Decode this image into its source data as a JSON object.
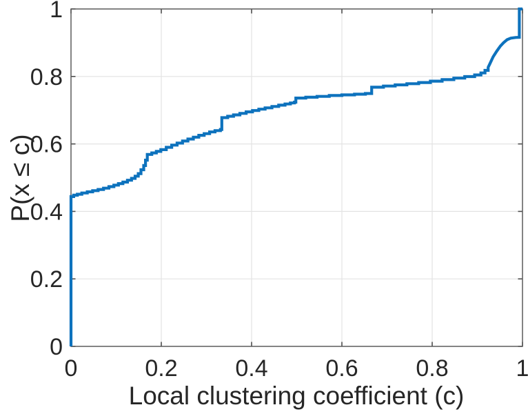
{
  "chart_data": {
    "type": "line",
    "subtype": "empirical-cdf-step",
    "title": "",
    "xlabel": "Local clustering coefficient (c)",
    "ylabel": "P(x ≤ c)",
    "xlim": [
      0,
      1
    ],
    "ylim": [
      0,
      1
    ],
    "x_ticks": [
      0,
      0.2,
      0.4,
      0.6,
      0.8,
      1
    ],
    "x_tick_labels": [
      "0",
      "0.2",
      "0.4",
      "0.6",
      "0.8",
      "1"
    ],
    "y_ticks": [
      0,
      0.2,
      0.4,
      0.6,
      0.8,
      1
    ],
    "y_tick_labels": [
      "0",
      "0.2",
      "0.4",
      "0.6",
      "0.8",
      "1"
    ],
    "grid": true,
    "box": true,
    "legend_position": "none",
    "line_color": "#0d72bd",
    "line_width": 4.2,
    "axis_color": "#5a5a5a",
    "tick_color": "#4d4d4d",
    "grid_color": "#e3e3e3",
    "label_color": "#262626",
    "series": [
      {
        "points": [
          [
            0,
            0
          ],
          [
            0,
            0.444
          ],
          [
            0.006,
            0.444
          ],
          [
            0.006,
            0.448
          ],
          [
            0.014,
            0.448
          ],
          [
            0.014,
            0.451
          ],
          [
            0.024,
            0.451
          ],
          [
            0.024,
            0.4545
          ],
          [
            0.036,
            0.4545
          ],
          [
            0.036,
            0.458
          ],
          [
            0.048,
            0.458
          ],
          [
            0.048,
            0.4615
          ],
          [
            0.06,
            0.4615
          ],
          [
            0.06,
            0.465
          ],
          [
            0.072,
            0.465
          ],
          [
            0.072,
            0.469
          ],
          [
            0.084,
            0.469
          ],
          [
            0.084,
            0.4735
          ],
          [
            0.095,
            0.4735
          ],
          [
            0.095,
            0.478
          ],
          [
            0.105,
            0.478
          ],
          [
            0.105,
            0.4825
          ],
          [
            0.115,
            0.4825
          ],
          [
            0.115,
            0.487
          ],
          [
            0.125,
            0.487
          ],
          [
            0.125,
            0.4925
          ],
          [
            0.134,
            0.4925
          ],
          [
            0.134,
            0.498
          ],
          [
            0.142,
            0.498
          ],
          [
            0.142,
            0.5045
          ],
          [
            0.149,
            0.5045
          ],
          [
            0.149,
            0.512
          ],
          [
            0.155,
            0.512
          ],
          [
            0.155,
            0.5235
          ],
          [
            0.161,
            0.5235
          ],
          [
            0.161,
            0.536
          ],
          [
            0.165,
            0.536
          ],
          [
            0.165,
            0.552
          ],
          [
            0.169,
            0.552
          ],
          [
            0.169,
            0.569
          ],
          [
            0.179,
            0.569
          ],
          [
            0.179,
            0.5735
          ],
          [
            0.189,
            0.5735
          ],
          [
            0.189,
            0.578
          ],
          [
            0.199,
            0.578
          ],
          [
            0.199,
            0.583
          ],
          [
            0.211,
            0.583
          ],
          [
            0.211,
            0.59
          ],
          [
            0.223,
            0.59
          ],
          [
            0.223,
            0.5965
          ],
          [
            0.235,
            0.5965
          ],
          [
            0.235,
            0.6025
          ],
          [
            0.247,
            0.6025
          ],
          [
            0.247,
            0.6085
          ],
          [
            0.259,
            0.6085
          ],
          [
            0.259,
            0.6145
          ],
          [
            0.271,
            0.6145
          ],
          [
            0.271,
            0.62
          ],
          [
            0.283,
            0.62
          ],
          [
            0.283,
            0.6255
          ],
          [
            0.295,
            0.6255
          ],
          [
            0.295,
            0.6305
          ],
          [
            0.307,
            0.6305
          ],
          [
            0.307,
            0.6355
          ],
          [
            0.319,
            0.6355
          ],
          [
            0.319,
            0.6395
          ],
          [
            0.331,
            0.6395
          ],
          [
            0.331,
            0.643
          ],
          [
            0.334,
            0.643
          ],
          [
            0.334,
            0.678
          ],
          [
            0.347,
            0.678
          ],
          [
            0.347,
            0.682
          ],
          [
            0.36,
            0.682
          ],
          [
            0.36,
            0.686
          ],
          [
            0.374,
            0.686
          ],
          [
            0.374,
            0.6905
          ],
          [
            0.388,
            0.6905
          ],
          [
            0.388,
            0.695
          ],
          [
            0.402,
            0.695
          ],
          [
            0.402,
            0.699
          ],
          [
            0.416,
            0.699
          ],
          [
            0.416,
            0.703
          ],
          [
            0.43,
            0.703
          ],
          [
            0.43,
            0.707
          ],
          [
            0.445,
            0.707
          ],
          [
            0.445,
            0.711
          ],
          [
            0.46,
            0.711
          ],
          [
            0.46,
            0.715
          ],
          [
            0.474,
            0.715
          ],
          [
            0.474,
            0.7185
          ],
          [
            0.486,
            0.7185
          ],
          [
            0.486,
            0.7215
          ],
          [
            0.495,
            0.7215
          ],
          [
            0.495,
            0.724
          ],
          [
            0.498,
            0.724
          ],
          [
            0.498,
            0.736
          ],
          [
            0.52,
            0.736
          ],
          [
            0.52,
            0.7385
          ],
          [
            0.545,
            0.7385
          ],
          [
            0.545,
            0.741
          ],
          [
            0.572,
            0.741
          ],
          [
            0.572,
            0.7435
          ],
          [
            0.6,
            0.7435
          ],
          [
            0.6,
            0.7455
          ],
          [
            0.628,
            0.7455
          ],
          [
            0.628,
            0.7475
          ],
          [
            0.652,
            0.7475
          ],
          [
            0.652,
            0.7495
          ],
          [
            0.666,
            0.7495
          ],
          [
            0.666,
            0.768
          ],
          [
            0.692,
            0.768
          ],
          [
            0.692,
            0.7715
          ],
          [
            0.718,
            0.7715
          ],
          [
            0.718,
            0.775
          ],
          [
            0.744,
            0.775
          ],
          [
            0.744,
            0.7785
          ],
          [
            0.77,
            0.7785
          ],
          [
            0.77,
            0.782
          ],
          [
            0.796,
            0.782
          ],
          [
            0.796,
            0.786
          ],
          [
            0.822,
            0.786
          ],
          [
            0.822,
            0.7905
          ],
          [
            0.848,
            0.7905
          ],
          [
            0.848,
            0.795
          ],
          [
            0.872,
            0.795
          ],
          [
            0.872,
            0.7995
          ],
          [
            0.894,
            0.7995
          ],
          [
            0.894,
            0.8045
          ],
          [
            0.908,
            0.8045
          ],
          [
            0.908,
            0.8105
          ],
          [
            0.917,
            0.8105
          ],
          [
            0.917,
            0.818
          ],
          [
            0.924,
            0.818
          ],
          [
            0.924,
            0.827
          ],
          [
            0.928,
            0.838
          ],
          [
            0.935,
            0.858
          ],
          [
            0.943,
            0.875
          ],
          [
            0.951,
            0.89
          ],
          [
            0.958,
            0.9
          ],
          [
            0.966,
            0.909
          ],
          [
            0.974,
            0.9135
          ],
          [
            0.985,
            0.9155
          ],
          [
            0.993,
            0.916
          ],
          [
            0.993,
            1.0
          ],
          [
            1.0,
            1.0
          ]
        ]
      }
    ]
  }
}
